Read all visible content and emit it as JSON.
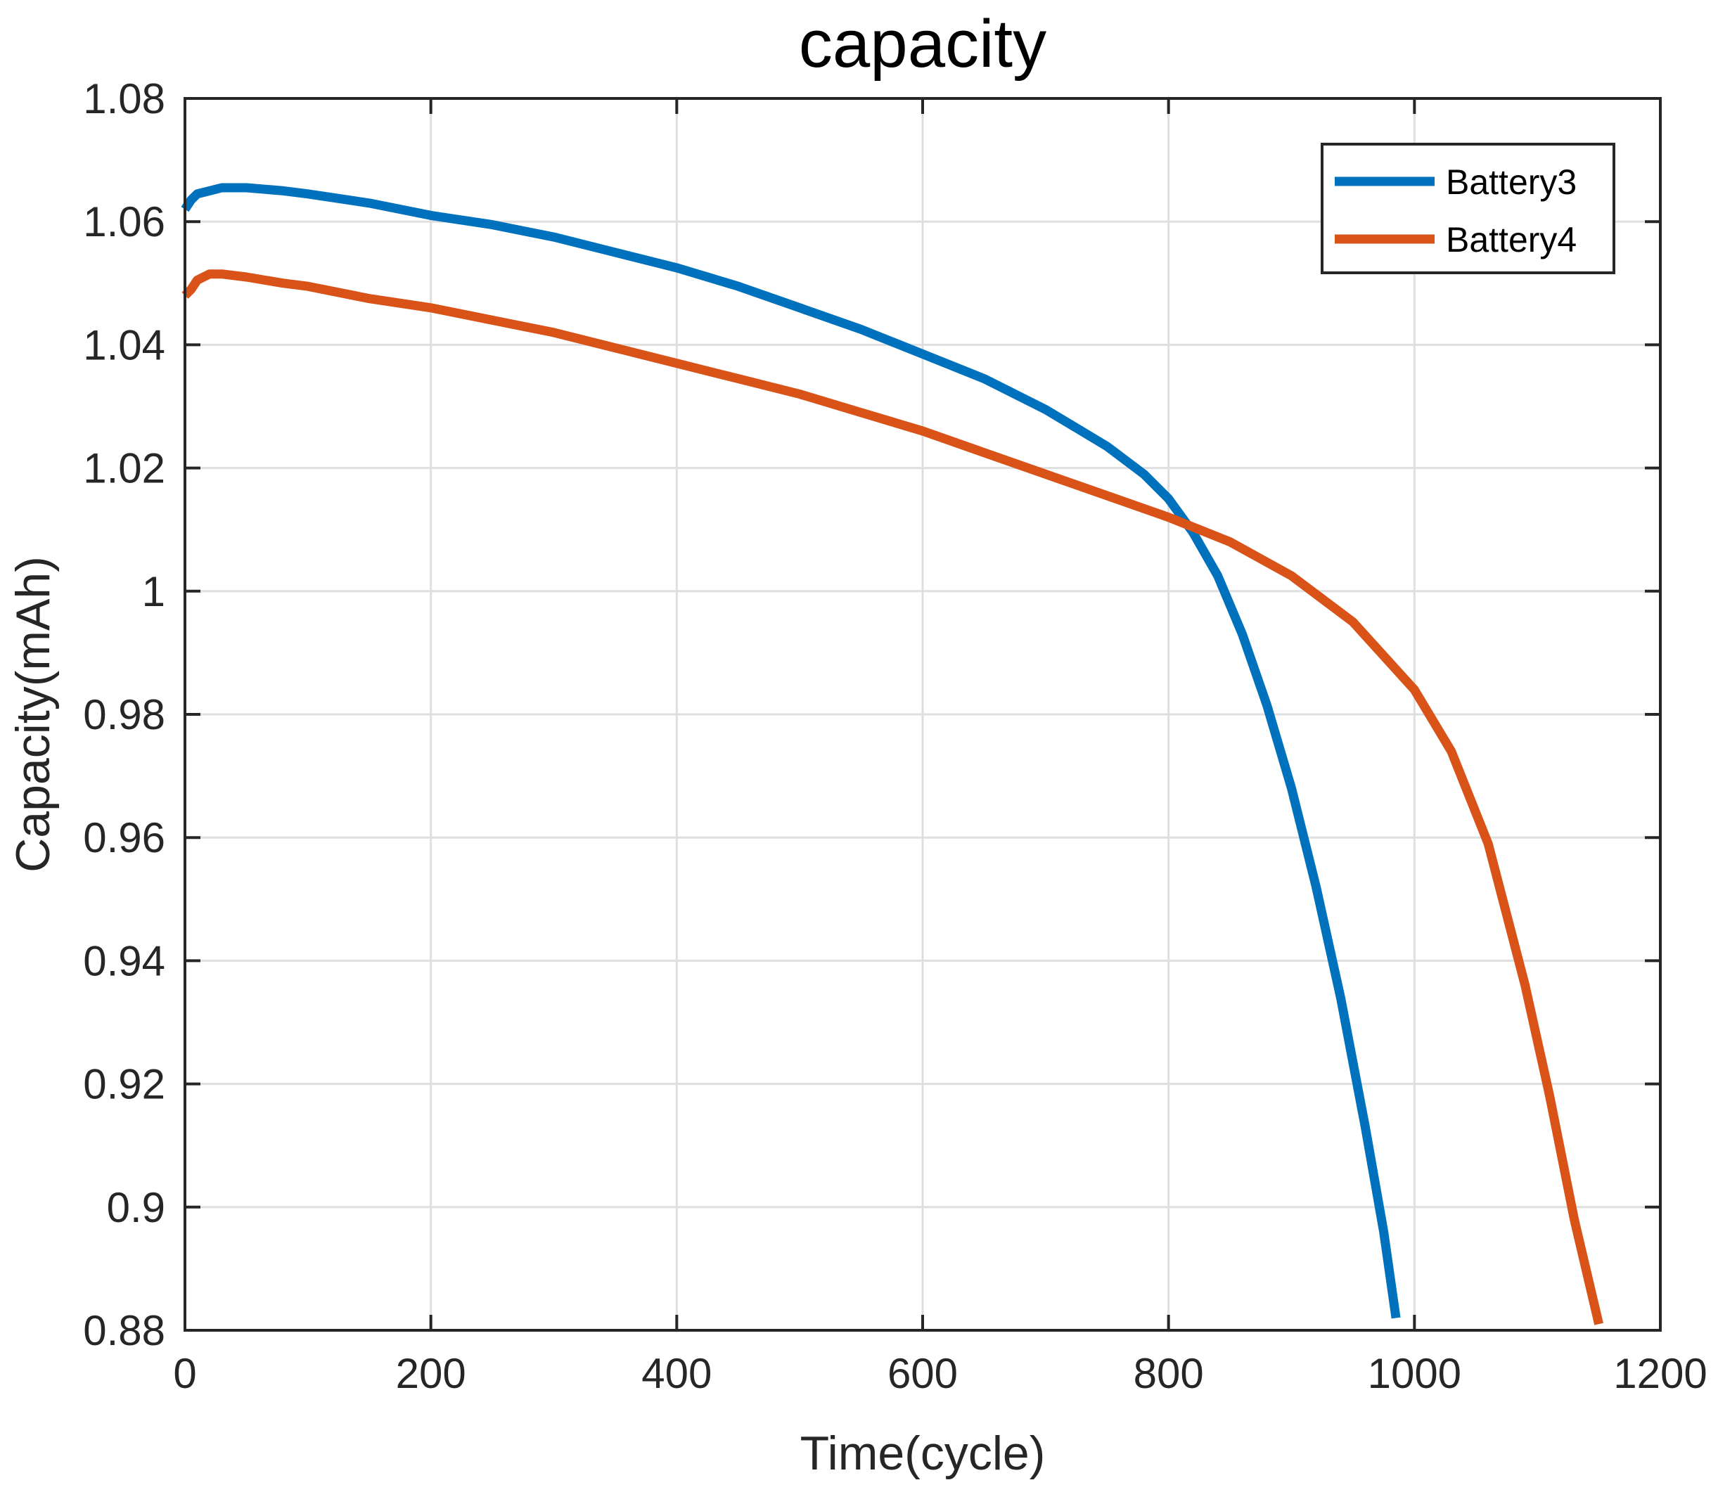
{
  "chart_data": {
    "type": "line",
    "title": "capacity",
    "xlabel": "Time(cycle)",
    "ylabel": "Capacity(mAh)",
    "xlim": [
      0,
      1200
    ],
    "ylim": [
      0.88,
      1.08
    ],
    "xticks": [
      0,
      200,
      400,
      600,
      800,
      1000,
      1200
    ],
    "xtick_labels": [
      "0",
      "200",
      "400",
      "600",
      "800",
      "1000",
      "1200"
    ],
    "yticks": [
      0.88,
      0.9,
      0.92,
      0.94,
      0.96,
      0.98,
      1.0,
      1.02,
      1.04,
      1.06,
      1.08
    ],
    "ytick_labels": [
      "0.88",
      "0.9",
      "0.92",
      "0.94",
      "0.96",
      "0.98",
      "1",
      "1.02",
      "1.04",
      "1.06",
      "1.08"
    ],
    "grid": true,
    "legend_position": "top-right",
    "series": [
      {
        "name": "Battery3",
        "color": "#0072BD",
        "x": [
          0,
          5,
          10,
          20,
          30,
          50,
          80,
          100,
          150,
          200,
          250,
          300,
          350,
          400,
          450,
          500,
          550,
          600,
          650,
          700,
          750,
          780,
          800,
          820,
          840,
          860,
          880,
          900,
          920,
          940,
          960,
          975,
          985
        ],
        "y": [
          1.062,
          1.0635,
          1.0645,
          1.065,
          1.0655,
          1.0655,
          1.065,
          1.0645,
          1.063,
          1.061,
          1.0595,
          1.0575,
          1.055,
          1.0525,
          1.0495,
          1.046,
          1.0425,
          1.0385,
          1.0345,
          1.0295,
          1.0235,
          1.019,
          1.015,
          1.0095,
          1.0025,
          0.993,
          0.9815,
          0.968,
          0.952,
          0.934,
          0.913,
          0.896,
          0.882
        ]
      },
      {
        "name": "Battery4",
        "color": "#D95319",
        "x": [
          0,
          5,
          10,
          20,
          30,
          50,
          80,
          100,
          150,
          200,
          250,
          300,
          350,
          400,
          450,
          500,
          550,
          600,
          650,
          700,
          750,
          800,
          850,
          900,
          950,
          1000,
          1030,
          1060,
          1090,
          1110,
          1130,
          1150
        ],
        "y": [
          1.048,
          1.049,
          1.0505,
          1.0515,
          1.0515,
          1.051,
          1.05,
          1.0495,
          1.0475,
          1.046,
          1.044,
          1.042,
          1.0395,
          1.037,
          1.0345,
          1.032,
          1.029,
          1.026,
          1.0225,
          1.019,
          1.0155,
          1.012,
          1.008,
          1.0025,
          0.995,
          0.984,
          0.974,
          0.959,
          0.936,
          0.918,
          0.898,
          0.881
        ]
      }
    ]
  }
}
